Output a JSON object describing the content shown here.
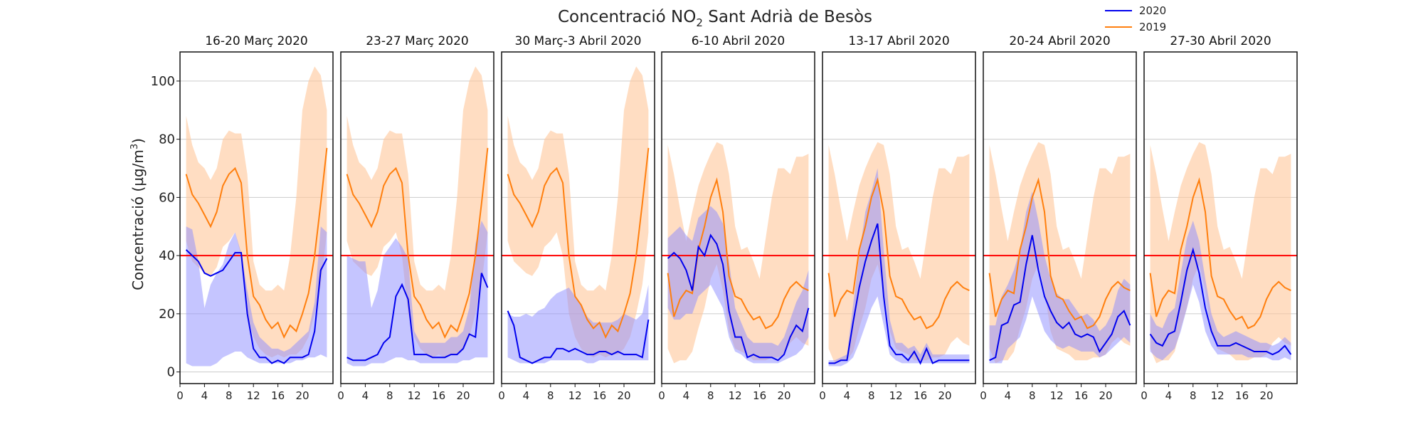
{
  "chart_data": {
    "type": "line",
    "title": {
      "prefix": "Concentració NO",
      "sub": "2",
      "suffix": " Sant Adrià de Besòs"
    },
    "ylabel": {
      "text": "Concentració (µg/m",
      "sup": "3",
      "end": ")"
    },
    "ylim": [
      -4,
      110
    ],
    "xlim": [
      0,
      25
    ],
    "yticks": [
      0,
      20,
      40,
      60,
      80,
      100
    ],
    "xticks": [
      0,
      4,
      8,
      12,
      16,
      20
    ],
    "grid": "horizontal",
    "threshold": {
      "value": 40,
      "color": "#ff0000"
    },
    "legend_position": "top-right",
    "series_info": [
      {
        "name": "2020",
        "color": "#0000ee",
        "band_color": "#8c8cff"
      },
      {
        "name": "2019",
        "color": "#ff7f0e",
        "band_color": "#ffc79a"
      }
    ],
    "hours": [
      1,
      2,
      3,
      4,
      5,
      6,
      7,
      8,
      9,
      10,
      11,
      12,
      13,
      14,
      15,
      16,
      17,
      18,
      19,
      20,
      21,
      22,
      23,
      24
    ],
    "panels": [
      {
        "title": "16-20 Març 2020",
        "s2020": [
          42,
          40,
          38,
          34,
          33,
          34,
          35,
          38,
          41,
          41,
          20,
          8,
          5,
          5,
          3,
          4,
          3,
          5,
          5,
          5,
          6,
          14,
          35,
          39
        ],
        "b2020_low": [
          3,
          2,
          2,
          2,
          2,
          3,
          5,
          6,
          7,
          7,
          5,
          4,
          3,
          3,
          3,
          3,
          3,
          3,
          4,
          4,
          5,
          5,
          6,
          5
        ],
        "b2020_high": [
          50,
          49,
          38,
          22,
          30,
          34,
          37,
          44,
          48,
          41,
          28,
          17,
          12,
          10,
          8,
          8,
          7,
          8,
          10,
          12,
          14,
          24,
          50,
          48
        ],
        "s2019": [
          68,
          61,
          58,
          54,
          50,
          55,
          64,
          68,
          70,
          65,
          40,
          26,
          23,
          18,
          15,
          17,
          12,
          16,
          14,
          20,
          27,
          40,
          58,
          77
        ],
        "b2019_low": [
          45,
          38,
          36,
          34,
          33,
          36,
          43,
          45,
          48,
          40,
          20,
          12,
          8,
          6,
          5,
          6,
          5,
          6,
          6,
          8,
          12,
          20,
          30,
          48
        ],
        "b2019_high": [
          88,
          78,
          72,
          70,
          66,
          70,
          80,
          83,
          82,
          82,
          68,
          38,
          30,
          28,
          28,
          30,
          28,
          40,
          60,
          90,
          100,
          105,
          102,
          90
        ]
      },
      {
        "title": "23-27 Març 2020",
        "s2020": [
          5,
          4,
          4,
          4,
          5,
          6,
          10,
          12,
          26,
          30,
          25,
          6,
          6,
          6,
          5,
          5,
          5,
          6,
          6,
          8,
          13,
          12,
          34,
          29
        ],
        "b2020_low": [
          3,
          2,
          2,
          2,
          3,
          3,
          3,
          4,
          5,
          5,
          4,
          4,
          3,
          3,
          3,
          3,
          3,
          3,
          3,
          4,
          4,
          5,
          5,
          5
        ],
        "b2020_high": [
          40,
          39,
          38,
          38,
          22,
          28,
          40,
          43,
          46,
          43,
          39,
          14,
          10,
          10,
          10,
          10,
          10,
          12,
          12,
          14,
          22,
          44,
          52,
          48
        ],
        "s2019": [
          68,
          61,
          58,
          54,
          50,
          55,
          64,
          68,
          70,
          65,
          40,
          26,
          23,
          18,
          15,
          17,
          12,
          16,
          14,
          20,
          27,
          40,
          58,
          77
        ],
        "b2019_low": [
          45,
          38,
          36,
          34,
          33,
          36,
          43,
          45,
          48,
          40,
          20,
          12,
          8,
          6,
          5,
          6,
          5,
          6,
          6,
          8,
          12,
          20,
          30,
          48
        ],
        "b2019_high": [
          88,
          78,
          72,
          70,
          66,
          70,
          80,
          83,
          82,
          82,
          68,
          38,
          30,
          28,
          28,
          30,
          28,
          40,
          60,
          90,
          100,
          105,
          102,
          90
        ]
      },
      {
        "title": "30 Març-3 Abril 2020",
        "s2020": [
          21,
          16,
          5,
          4,
          3,
          4,
          5,
          5,
          8,
          8,
          7,
          8,
          7,
          6,
          6,
          7,
          7,
          6,
          7,
          6,
          6,
          6,
          5,
          18
        ],
        "b2020_low": [
          5,
          4,
          3,
          3,
          3,
          3,
          3,
          4,
          4,
          4,
          4,
          4,
          4,
          3,
          3,
          4,
          4,
          4,
          4,
          4,
          4,
          4,
          4,
          4
        ],
        "b2020_high": [
          20,
          19,
          19,
          20,
          19,
          21,
          22,
          25,
          27,
          28,
          29,
          26,
          23,
          19,
          17,
          17,
          17,
          17,
          18,
          20,
          19,
          18,
          20,
          30
        ],
        "s2019": [
          68,
          61,
          58,
          54,
          50,
          55,
          64,
          68,
          70,
          65,
          40,
          26,
          23,
          18,
          15,
          17,
          12,
          16,
          14,
          20,
          27,
          40,
          58,
          77
        ],
        "b2019_low": [
          45,
          38,
          36,
          34,
          33,
          36,
          43,
          45,
          48,
          40,
          20,
          12,
          8,
          6,
          5,
          6,
          5,
          6,
          6,
          8,
          12,
          20,
          30,
          48
        ],
        "b2019_high": [
          88,
          78,
          72,
          70,
          66,
          70,
          80,
          83,
          82,
          82,
          68,
          38,
          30,
          28,
          28,
          30,
          28,
          40,
          60,
          90,
          100,
          105,
          102,
          90
        ]
      },
      {
        "title": "6-10 Abril 2020",
        "s2020": [
          39,
          41,
          39,
          35,
          28,
          43,
          40,
          47,
          44,
          37,
          21,
          12,
          12,
          5,
          6,
          5,
          5,
          5,
          4,
          6,
          12,
          16,
          14,
          22
        ],
        "b2020_low": [
          22,
          18,
          18,
          20,
          20,
          26,
          28,
          30,
          26,
          22,
          12,
          7,
          6,
          4,
          3,
          3,
          3,
          3,
          3,
          4,
          5,
          6,
          8,
          12
        ],
        "b2020_high": [
          46,
          48,
          50,
          47,
          45,
          53,
          55,
          57,
          55,
          51,
          38,
          22,
          17,
          12,
          10,
          10,
          10,
          10,
          9,
          12,
          18,
          24,
          28,
          35
        ],
        "s2019": [
          34,
          19,
          25,
          28,
          27,
          42,
          50,
          60,
          66,
          55,
          33,
          26,
          25,
          21,
          18,
          19,
          15,
          16,
          19,
          25,
          29,
          31,
          29,
          28
        ],
        "b2019_low": [
          8,
          3,
          4,
          4,
          7,
          15,
          22,
          32,
          37,
          28,
          14,
          8,
          7,
          6,
          4,
          4,
          4,
          5,
          5,
          6,
          10,
          12,
          10,
          9
        ],
        "b2019_high": [
          78,
          68,
          56,
          45,
          55,
          64,
          70,
          75,
          79,
          78,
          68,
          50,
          42,
          43,
          38,
          32,
          46,
          60,
          70,
          70,
          68,
          74,
          74,
          75
        ]
      },
      {
        "title": "13-17 Abril 2020",
        "s2020": [
          3,
          3,
          4,
          4,
          17,
          29,
          38,
          45,
          51,
          26,
          9,
          6,
          6,
          4,
          7,
          3,
          8,
          3,
          4,
          4,
          4,
          4,
          4,
          4
        ],
        "b2020_low": [
          2,
          2,
          2,
          3,
          5,
          10,
          16,
          22,
          26,
          16,
          6,
          4,
          3,
          3,
          3,
          3,
          3,
          3,
          3,
          3,
          3,
          3,
          3,
          3
        ],
        "b2020_high": [
          4,
          4,
          5,
          6,
          23,
          40,
          55,
          62,
          70,
          42,
          18,
          10,
          10,
          8,
          9,
          6,
          10,
          6,
          6,
          6,
          6,
          6,
          6,
          6
        ],
        "s2019": [
          34,
          19,
          25,
          28,
          27,
          42,
          50,
          60,
          66,
          55,
          33,
          26,
          25,
          21,
          18,
          19,
          15,
          16,
          19,
          25,
          29,
          31,
          29,
          28
        ],
        "b2019_low": [
          8,
          3,
          4,
          4,
          7,
          15,
          22,
          32,
          37,
          28,
          14,
          8,
          7,
          6,
          4,
          4,
          4,
          5,
          5,
          6,
          10,
          12,
          10,
          9
        ],
        "b2019_high": [
          78,
          68,
          56,
          45,
          55,
          64,
          70,
          75,
          79,
          78,
          68,
          50,
          42,
          43,
          38,
          32,
          46,
          60,
          70,
          70,
          68,
          74,
          74,
          75
        ]
      },
      {
        "title": "20-24 Abril 2020",
        "s2020": [
          4,
          5,
          16,
          17,
          23,
          24,
          37,
          47,
          35,
          26,
          21,
          17,
          15,
          17,
          13,
          12,
          13,
          12,
          7,
          10,
          13,
          19,
          21,
          16
        ],
        "b2020_low": [
          3,
          3,
          3,
          8,
          10,
          12,
          18,
          26,
          20,
          14,
          11,
          9,
          8,
          9,
          8,
          7,
          7,
          7,
          5,
          6,
          8,
          10,
          12,
          10
        ],
        "b2020_high": [
          16,
          16,
          26,
          30,
          35,
          42,
          55,
          62,
          52,
          40,
          32,
          27,
          25,
          25,
          22,
          19,
          20,
          18,
          14,
          16,
          20,
          28,
          32,
          30
        ],
        "s2019": [
          34,
          19,
          25,
          28,
          27,
          42,
          50,
          60,
          66,
          55,
          33,
          26,
          25,
          21,
          18,
          19,
          15,
          16,
          19,
          25,
          29,
          31,
          29,
          28
        ],
        "b2019_low": [
          8,
          3,
          4,
          4,
          7,
          15,
          22,
          32,
          37,
          28,
          14,
          8,
          7,
          6,
          4,
          4,
          4,
          5,
          5,
          6,
          10,
          12,
          10,
          9
        ],
        "b2019_high": [
          78,
          68,
          56,
          45,
          55,
          64,
          70,
          75,
          79,
          78,
          68,
          50,
          42,
          43,
          38,
          32,
          46,
          60,
          70,
          70,
          68,
          74,
          74,
          75
        ]
      },
      {
        "title": "27-30 Abril 2020",
        "s2020": [
          13,
          10,
          9,
          13,
          14,
          24,
          35,
          42,
          34,
          22,
          14,
          9,
          9,
          9,
          10,
          9,
          8,
          7,
          7,
          7,
          6,
          7,
          9,
          6
        ],
        "b2020_low": [
          7,
          5,
          4,
          6,
          8,
          14,
          22,
          30,
          24,
          14,
          9,
          6,
          6,
          6,
          6,
          6,
          5,
          5,
          5,
          5,
          4,
          4,
          5,
          4
        ],
        "b2020_high": [
          20,
          16,
          15,
          20,
          22,
          34,
          46,
          52,
          45,
          32,
          20,
          14,
          12,
          13,
          14,
          13,
          12,
          11,
          10,
          10,
          9,
          10,
          12,
          10
        ],
        "s2019": [
          34,
          19,
          25,
          28,
          27,
          42,
          50,
          60,
          66,
          55,
          33,
          26,
          25,
          21,
          18,
          19,
          15,
          16,
          19,
          25,
          29,
          31,
          29,
          28
        ],
        "b2019_low": [
          8,
          3,
          4,
          4,
          7,
          15,
          22,
          32,
          37,
          28,
          14,
          8,
          7,
          6,
          4,
          4,
          4,
          5,
          5,
          6,
          10,
          12,
          10,
          9
        ],
        "b2019_high": [
          78,
          68,
          56,
          45,
          55,
          64,
          70,
          75,
          79,
          78,
          68,
          50,
          42,
          43,
          38,
          32,
          46,
          60,
          70,
          70,
          68,
          74,
          74,
          75
        ]
      }
    ]
  }
}
